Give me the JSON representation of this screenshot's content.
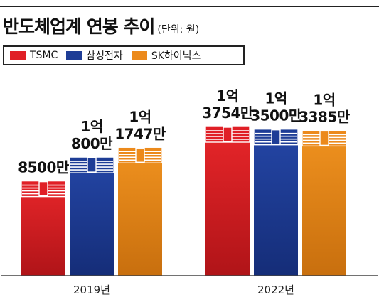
{
  "header": {
    "title": "반도체업계 연봉 추이",
    "unit": "(단위: 원)"
  },
  "chart_data": {
    "type": "bar",
    "title": "반도체업계 연봉 추이",
    "unit_note": "(단위: 원)",
    "categories": [
      "2019년",
      "2022년"
    ],
    "series": [
      {
        "name": "TSMC",
        "color": "#e01f26",
        "values": [
          85000000,
          137540000
        ],
        "labels": [
          [
            "8500만"
          ],
          [
            "1억",
            "3754만"
          ]
        ]
      },
      {
        "name": "삼성전자",
        "color": "#1e3d96",
        "values": [
          108000000,
          135000000
        ],
        "labels": [
          [
            "1억",
            "800만"
          ],
          [
            "1억",
            "3500만"
          ]
        ]
      },
      {
        "name": "SK하이닉스",
        "color": "#ec8a1c",
        "values": [
          117470000,
          133850000
        ],
        "labels": [
          [
            "1억",
            "1747만"
          ],
          [
            "1억",
            "3385만"
          ]
        ]
      }
    ],
    "ylim": [
      0,
      140000000
    ],
    "grid": false,
    "legend_position": "top-left"
  }
}
